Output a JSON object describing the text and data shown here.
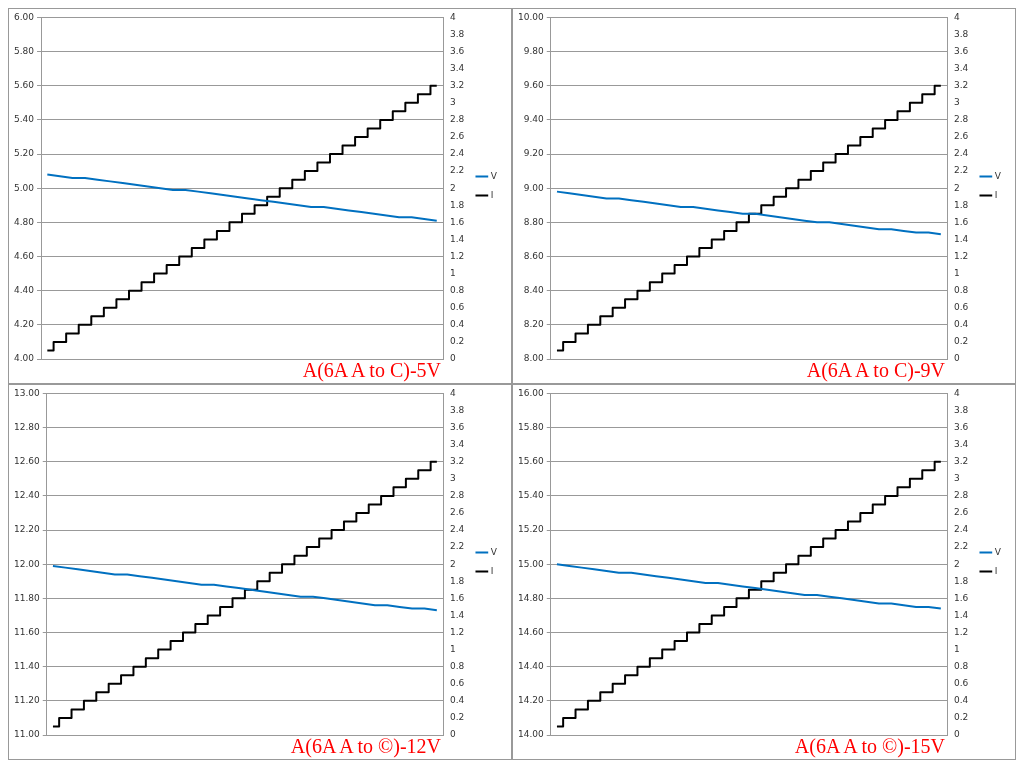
{
  "chart_data": [
    {
      "type": "line",
      "title": "A(6A A to C)-5V",
      "categories": [
        null,
        null,
        null,
        null,
        null,
        null,
        null,
        null,
        null,
        null,
        null,
        null,
        null,
        null,
        null,
        null,
        null,
        null,
        null,
        null,
        null,
        null,
        null,
        null,
        null,
        null,
        null,
        null,
        null,
        null,
        null,
        null
      ],
      "series": [
        {
          "name": "V",
          "color": "#0070c0",
          "values": [
            5.08,
            5.07,
            5.06,
            5.06,
            5.05,
            5.04,
            5.03,
            5.02,
            5.01,
            5.0,
            4.99,
            4.99,
            4.98,
            4.97,
            4.96,
            4.95,
            4.94,
            4.93,
            4.92,
            4.91,
            4.9,
            4.89,
            4.89,
            4.88,
            4.87,
            4.86,
            4.85,
            4.84,
            4.83,
            4.83,
            4.82,
            4.81
          ]
        },
        {
          "name": "I",
          "type": "step",
          "axis": "y2",
          "color": "#000000",
          "values": [
            0.1,
            0.2,
            0.3,
            0.4,
            0.5,
            0.6,
            0.7,
            0.8,
            0.9,
            1.0,
            1.1,
            1.2,
            1.3,
            1.4,
            1.5,
            1.6,
            1.7,
            1.8,
            1.9,
            2.0,
            2.1,
            2.2,
            2.3,
            2.4,
            2.5,
            2.6,
            2.7,
            2.8,
            2.9,
            3.0,
            3.1,
            3.2
          ]
        }
      ],
      "ylim": [
        4,
        6
      ],
      "yticks": [
        {
          "value": 4,
          "label": "4.00"
        },
        {
          "value": 4.2,
          "label": "4.20"
        },
        {
          "value": 4.4,
          "label": "4.40"
        },
        {
          "value": 4.6,
          "label": "4.60"
        },
        {
          "value": 4.8,
          "label": "4.80"
        },
        {
          "value": 5,
          "label": "5.00"
        },
        {
          "value": 5.2,
          "label": "5.20"
        },
        {
          "value": 5.4,
          "label": "5.40"
        },
        {
          "value": 5.6,
          "label": "5.60"
        },
        {
          "value": 5.8,
          "label": "5.80"
        },
        {
          "value": 6,
          "label": "6.00"
        }
      ],
      "y2lim": [
        0,
        4
      ],
      "y2ticks": [
        0,
        0.2,
        0.4,
        0.6,
        0.8,
        1,
        1.2,
        1.4,
        1.6,
        1.8,
        2,
        2.2,
        2.4,
        2.6,
        2.8,
        3,
        3.2,
        3.4,
        3.6,
        3.8,
        4
      ],
      "grid": "y",
      "legend": "right",
      "marker": "none"
    },
    {
      "type": "line",
      "title": "A(6A A to C)-9V",
      "categories": [
        null,
        null,
        null,
        null,
        null,
        null,
        null,
        null,
        null,
        null,
        null,
        null,
        null,
        null,
        null,
        null,
        null,
        null,
        null,
        null,
        null,
        null,
        null,
        null,
        null,
        null,
        null,
        null,
        null,
        null,
        null,
        null
      ],
      "series": [
        {
          "name": "V",
          "color": "#0070c0",
          "values": [
            8.98,
            8.97,
            8.96,
            8.95,
            8.94,
            8.94,
            8.93,
            8.92,
            8.91,
            8.9,
            8.89,
            8.89,
            8.88,
            8.87,
            8.86,
            8.85,
            8.85,
            8.84,
            8.83,
            8.82,
            8.81,
            8.8,
            8.8,
            8.79,
            8.78,
            8.77,
            8.76,
            8.76,
            8.75,
            8.74,
            8.74,
            8.73
          ]
        },
        {
          "name": "I",
          "type": "step",
          "axis": "y2",
          "color": "#000000",
          "values": [
            0.1,
            0.2,
            0.3,
            0.4,
            0.5,
            0.6,
            0.7,
            0.8,
            0.9,
            1.0,
            1.1,
            1.2,
            1.3,
            1.4,
            1.5,
            1.6,
            1.7,
            1.8,
            1.9,
            2.0,
            2.1,
            2.2,
            2.3,
            2.4,
            2.5,
            2.6,
            2.7,
            2.8,
            2.9,
            3.0,
            3.1,
            3.2
          ]
        }
      ],
      "ylim": [
        8,
        10
      ],
      "yticks": [
        {
          "value": 8,
          "label": "8.00"
        },
        {
          "value": 8.2,
          "label": "8.20"
        },
        {
          "value": 8.4,
          "label": "8.40"
        },
        {
          "value": 8.6,
          "label": "8.60"
        },
        {
          "value": 8.8,
          "label": "8.80"
        },
        {
          "value": 9,
          "label": "9.00"
        },
        {
          "value": 9.2,
          "label": "9.20"
        },
        {
          "value": 9.4,
          "label": "9.40"
        },
        {
          "value": 9.6,
          "label": "9.60"
        },
        {
          "value": 9.8,
          "label": "9.80"
        },
        {
          "value": 10,
          "label": "10.00"
        }
      ],
      "y2lim": [
        0,
        4
      ],
      "y2ticks": [
        0,
        0.2,
        0.4,
        0.6,
        0.8,
        1,
        1.2,
        1.4,
        1.6,
        1.8,
        2,
        2.2,
        2.4,
        2.6,
        2.8,
        3,
        3.2,
        3.4,
        3.6,
        3.8,
        4
      ],
      "grid": "y",
      "legend": "right",
      "marker": "none"
    },
    {
      "type": "line",
      "title": "A(6A A to ©)-12V",
      "categories": [
        null,
        null,
        null,
        null,
        null,
        null,
        null,
        null,
        null,
        null,
        null,
        null,
        null,
        null,
        null,
        null,
        null,
        null,
        null,
        null,
        null,
        null,
        null,
        null,
        null,
        null,
        null,
        null,
        null,
        null,
        null,
        null
      ],
      "series": [
        {
          "name": "V",
          "color": "#0070c0",
          "values": [
            11.99,
            11.98,
            11.97,
            11.96,
            11.95,
            11.94,
            11.94,
            11.93,
            11.92,
            11.91,
            11.9,
            11.89,
            11.88,
            11.88,
            11.87,
            11.86,
            11.85,
            11.84,
            11.83,
            11.82,
            11.81,
            11.81,
            11.8,
            11.79,
            11.78,
            11.77,
            11.76,
            11.76,
            11.75,
            11.74,
            11.74,
            11.73
          ]
        },
        {
          "name": "I",
          "type": "step",
          "axis": "y2",
          "color": "#000000",
          "values": [
            0.1,
            0.2,
            0.3,
            0.4,
            0.5,
            0.6,
            0.7,
            0.8,
            0.9,
            1.0,
            1.1,
            1.2,
            1.3,
            1.4,
            1.5,
            1.6,
            1.7,
            1.8,
            1.9,
            2.0,
            2.1,
            2.2,
            2.3,
            2.4,
            2.5,
            2.6,
            2.7,
            2.8,
            2.9,
            3.0,
            3.1,
            3.2
          ]
        }
      ],
      "ylim": [
        11,
        13
      ],
      "yticks": [
        {
          "value": 11,
          "label": "11.00"
        },
        {
          "value": 11.2,
          "label": "11.20"
        },
        {
          "value": 11.4,
          "label": "11.40"
        },
        {
          "value": 11.6,
          "label": "11.60"
        },
        {
          "value": 11.8,
          "label": "11.80"
        },
        {
          "value": 12,
          "label": "12.00"
        },
        {
          "value": 12.2,
          "label": "12.20"
        },
        {
          "value": 12.4,
          "label": "12.40"
        },
        {
          "value": 12.6,
          "label": "12.60"
        },
        {
          "value": 12.8,
          "label": "12.80"
        },
        {
          "value": 13,
          "label": "13.00"
        }
      ],
      "y2lim": [
        0,
        4
      ],
      "y2ticks": [
        0,
        0.2,
        0.4,
        0.6,
        0.8,
        1,
        1.2,
        1.4,
        1.6,
        1.8,
        2,
        2.2,
        2.4,
        2.6,
        2.8,
        3,
        3.2,
        3.4,
        3.6,
        3.8,
        4
      ],
      "grid": "y",
      "legend": "right",
      "marker": "none"
    },
    {
      "type": "line",
      "title": "A(6A A to ©)-15V",
      "categories": [
        null,
        null,
        null,
        null,
        null,
        null,
        null,
        null,
        null,
        null,
        null,
        null,
        null,
        null,
        null,
        null,
        null,
        null,
        null,
        null,
        null,
        null,
        null,
        null,
        null,
        null,
        null,
        null,
        null,
        null,
        null,
        null
      ],
      "series": [
        {
          "name": "V",
          "color": "#0070c0",
          "values": [
            15.0,
            14.99,
            14.98,
            14.97,
            14.96,
            14.95,
            14.95,
            14.94,
            14.93,
            14.92,
            14.91,
            14.9,
            14.89,
            14.89,
            14.88,
            14.87,
            14.86,
            14.85,
            14.84,
            14.83,
            14.82,
            14.82,
            14.81,
            14.8,
            14.79,
            14.78,
            14.77,
            14.77,
            14.76,
            14.75,
            14.75,
            14.74
          ]
        },
        {
          "name": "I",
          "type": "step",
          "axis": "y2",
          "color": "#000000",
          "values": [
            0.1,
            0.2,
            0.3,
            0.4,
            0.5,
            0.6,
            0.7,
            0.8,
            0.9,
            1.0,
            1.1,
            1.2,
            1.3,
            1.4,
            1.5,
            1.6,
            1.7,
            1.8,
            1.9,
            2.0,
            2.1,
            2.2,
            2.3,
            2.4,
            2.5,
            2.6,
            2.7,
            2.8,
            2.9,
            3.0,
            3.1,
            3.2
          ]
        }
      ],
      "ylim": [
        14,
        16
      ],
      "yticks": [
        {
          "value": 14,
          "label": "14.00"
        },
        {
          "value": 14.2,
          "label": "14.20"
        },
        {
          "value": 14.4,
          "label": "14.40"
        },
        {
          "value": 14.6,
          "label": "14.60"
        },
        {
          "value": 14.8,
          "label": "14.80"
        },
        {
          "value": 15,
          "label": "15.00"
        },
        {
          "value": 15.2,
          "label": "15.20"
        },
        {
          "value": 15.4,
          "label": "15.40"
        },
        {
          "value": 15.6,
          "label": "15.60"
        },
        {
          "value": 15.8,
          "label": "15.80"
        },
        {
          "value": 16,
          "label": "16.00"
        }
      ],
      "y2lim": [
        0,
        4
      ],
      "y2ticks": [
        0,
        0.2,
        0.4,
        0.6,
        0.8,
        1,
        1.2,
        1.4,
        1.6,
        1.8,
        2,
        2.2,
        2.4,
        2.6,
        2.8,
        3,
        3.2,
        3.4,
        3.6,
        3.8,
        4
      ],
      "grid": "y",
      "legend": "right",
      "marker": "none"
    }
  ]
}
